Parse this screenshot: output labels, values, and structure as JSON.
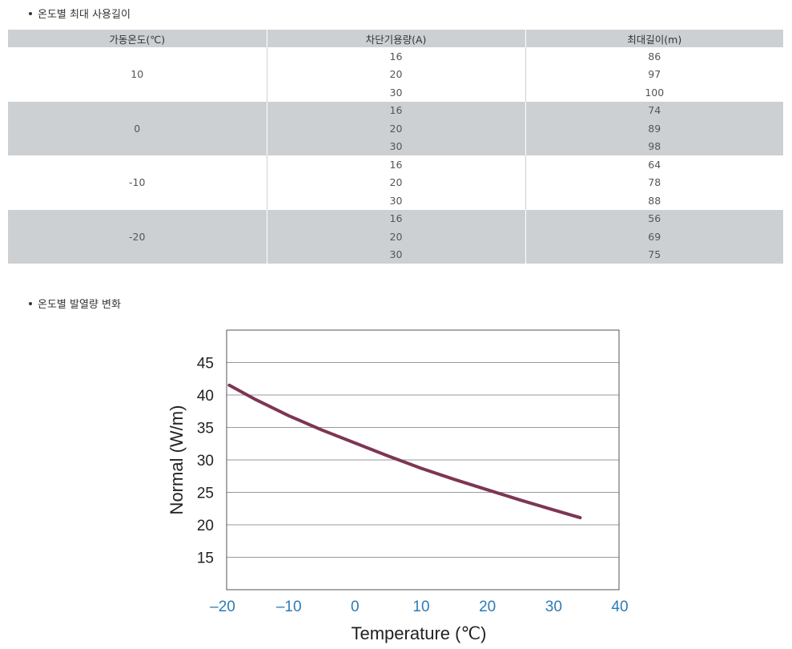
{
  "section1": {
    "title": "온도별 최대 사용길이"
  },
  "section2": {
    "title": "온도별 발열량 변화"
  },
  "table": {
    "headers": [
      "가동온도(℃)",
      "차단기용량(A)",
      "최대길이(m)"
    ],
    "groups": [
      {
        "temp": "10",
        "rows": [
          [
            "16",
            "86"
          ],
          [
            "20",
            "97"
          ],
          [
            "30",
            "100"
          ]
        ]
      },
      {
        "temp": "0",
        "rows": [
          [
            "16",
            "74"
          ],
          [
            "20",
            "89"
          ],
          [
            "30",
            "98"
          ]
        ]
      },
      {
        "temp": "-10",
        "rows": [
          [
            "16",
            "64"
          ],
          [
            "20",
            "78"
          ],
          [
            "30",
            "88"
          ]
        ]
      },
      {
        "temp": "-20",
        "rows": [
          [
            "16",
            "56"
          ],
          [
            "20",
            "69"
          ],
          [
            "30",
            "75"
          ]
        ]
      }
    ]
  },
  "chart_data": {
    "type": "line",
    "title": "",
    "xlabel": "Temperature (℃)",
    "ylabel": "Normal (W/m)",
    "xlim": [
      -20,
      40
    ],
    "ylim": [
      10,
      50
    ],
    "xticks": [
      "–20",
      "–10",
      "0",
      "10",
      "20",
      "30",
      "40"
    ],
    "xtick_values": [
      -20,
      -10,
      0,
      10,
      20,
      30,
      40
    ],
    "yticks": [
      "45",
      "40",
      "35",
      "30",
      "25",
      "20",
      "15"
    ],
    "ytick_values": [
      45,
      40,
      35,
      30,
      25,
      20,
      15
    ],
    "grid": "horizontal",
    "series": [
      {
        "x": [
          -19,
          -15,
          -10,
          -5,
          0,
          5,
          10,
          15,
          20,
          25,
          30,
          34
        ],
        "y": [
          41.5,
          39.3,
          36.8,
          34.6,
          32.6,
          30.6,
          28.7,
          27.0,
          25.4,
          23.8,
          22.3,
          21.1
        ],
        "color": "#7d3654"
      }
    ],
    "colors": {
      "xtick": "#2c7bb6",
      "ytick": "#222222",
      "grid": "#999999",
      "line": "#7d3654"
    }
  }
}
